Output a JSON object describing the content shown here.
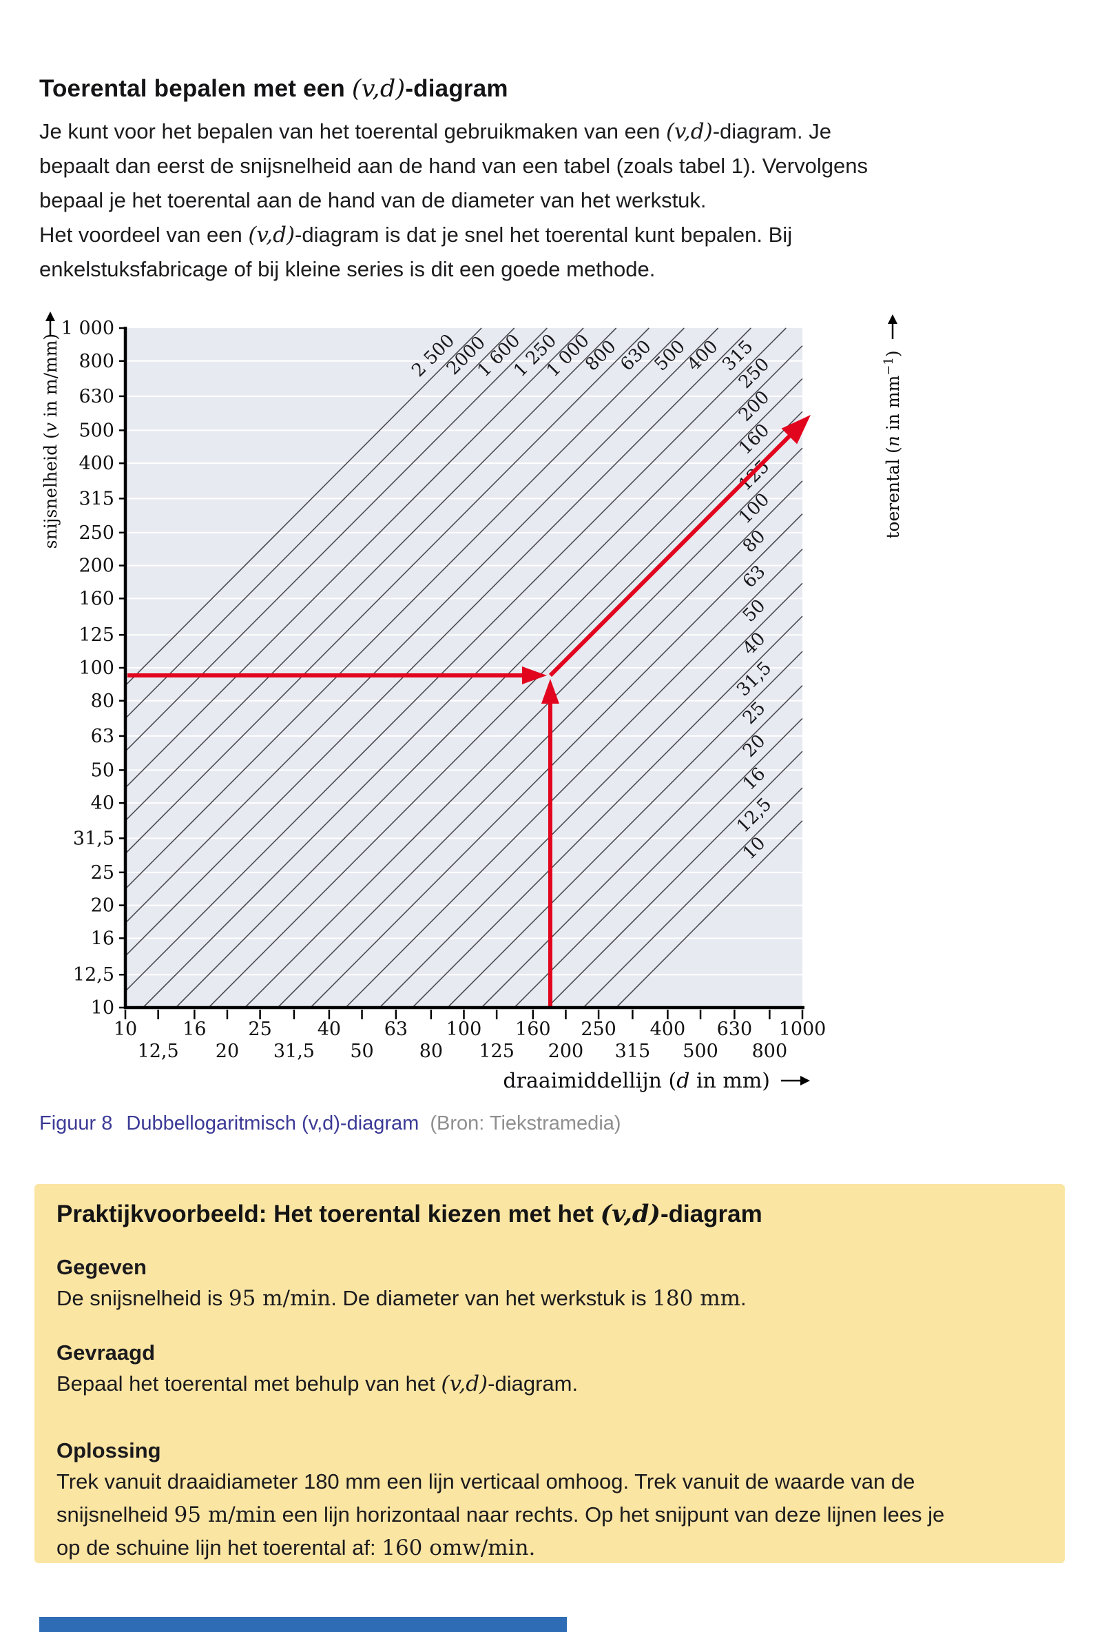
{
  "page": {
    "title": [
      {
        "t": "Toerental bepalen met een "
      },
      {
        "t": "(v,d)",
        "s": "vd"
      },
      {
        "t": "-diagram"
      }
    ],
    "intro": [
      [
        {
          "t": "Je kunt voor het bepalen van het toerental gebruikmaken van een "
        },
        {
          "t": "(v,d)",
          "s": "vd"
        },
        {
          "t": "-diagram. Je"
        }
      ],
      [
        {
          "t": "bepaalt dan eerst de snijsnelheid aan de hand van een tabel (zoals tabel 1). Vervolgens"
        }
      ],
      [
        {
          "t": "bepaal je het toerental aan de hand van de diameter van het werkstuk."
        }
      ],
      [
        {
          "t": "Het voordeel van een "
        },
        {
          "t": "(v,d)",
          "s": "vd"
        },
        {
          "t": "-diagram is dat je snel het toerental kunt bepalen. Bij"
        }
      ],
      [
        {
          "t": "enkelstuksfabricage of bij kleine series is dit een goede methode."
        }
      ]
    ]
  },
  "chart_data": {
    "type": "line",
    "description": "Double-logarithmic (v,d) nomogram: 45-degree diagonal lines of constant toerental n; red arrows show reading example d=180 mm, v=95 m/min giving n=160",
    "x_axis": {
      "title": "draaimiddellijn (d in mm)",
      "title_segs": [
        {
          "t": "draaimiddellijn ("
        },
        {
          "t": "d",
          "i": 1
        },
        {
          "t": " in mm)"
        }
      ],
      "scale": "log",
      "range": [
        10,
        1000
      ],
      "ticks": [
        "10",
        "12,5",
        "16",
        "20",
        "25",
        "31,5",
        "40",
        "50",
        "63",
        "80",
        "100",
        "125",
        "160",
        "200",
        "250",
        "315",
        "400",
        "500",
        "630",
        "800",
        "1000"
      ]
    },
    "y_axis": {
      "title": "snijsnelheid (v in m/mm)",
      "title_segs": [
        {
          "t": "snijsnelheid ("
        },
        {
          "t": "v",
          "i": 1
        },
        {
          "t": " in m/mm)"
        }
      ],
      "scale": "log",
      "range": [
        10,
        1000
      ],
      "ticks": [
        "10",
        "12,5",
        "16",
        "20",
        "25",
        "31,5",
        "40",
        "50",
        "63",
        "80",
        "100",
        "125",
        "160",
        "200",
        "250",
        "315",
        "400",
        "500",
        "630",
        "800",
        "1 000"
      ]
    },
    "diag_axis": {
      "title": "toerental (n in mm⁻¹)",
      "title_segs": [
        {
          "t": "toerental ("
        },
        {
          "t": "n",
          "i": 1
        },
        {
          "t": " in mm"
        },
        {
          "t": "−1",
          "sup": 1
        },
        {
          "t": ")"
        }
      ],
      "line_labels": [
        "2 500",
        "2000",
        "1 600",
        "1 250",
        "1 000",
        "800",
        "630",
        "500",
        "400",
        "315",
        "250",
        "200",
        "160",
        "125",
        "100",
        "80",
        "63",
        "50",
        "40",
        "31,5",
        "25",
        "20",
        "16",
        "12,5",
        "10"
      ]
    },
    "example_point": {
      "d": 180,
      "v": 95,
      "n": 160
    },
    "colors": {
      "plot_bg": "#e8eaf2",
      "grid": "#ffffff",
      "diagonal": "#4d4d52",
      "axis": "#000000",
      "red": "#e2051e"
    }
  },
  "caption": {
    "figure": "Figuur 8",
    "text": "Dubbellogaritmisch (v,d)-diagram",
    "source": "(Bron: Tiekstramedia)"
  },
  "example_box": {
    "heading": [
      {
        "t": "Praktijkvoorbeeld: Het toerental kiezen met het "
      },
      {
        "t": "(v,d)",
        "s": "vd"
      },
      {
        "t": "-diagram"
      }
    ],
    "sections": [
      {
        "label": "Gegeven",
        "lines": [
          [
            {
              "t": "De snijsnelheid is "
            },
            {
              "t": "95 m/min",
              "s": "m"
            },
            {
              "t": ". De diameter van het werkstuk is "
            },
            {
              "t": "180 mm",
              "s": "m"
            },
            {
              "t": "."
            }
          ]
        ]
      },
      {
        "label": "Gevraagd",
        "lines": [
          [
            {
              "t": "Bepaal het toerental met behulp van het "
            },
            {
              "t": "(v,d)",
              "s": "vd"
            },
            {
              "t": "-diagram."
            }
          ]
        ]
      },
      {
        "label": "Oplossing",
        "lines": [
          [
            {
              "t": "Trek vanuit draaidiameter 180 mm een lijn verticaal omhoog. Trek vanuit de waarde van de"
            }
          ],
          [
            {
              "t": "snijsnelheid "
            },
            {
              "t": "95 m/min",
              "s": "m"
            },
            {
              "t": " een lijn horizontaal naar rechts. Op het snijpunt van deze lijnen lees je"
            }
          ],
          [
            {
              "t": "op de schuine lijn het toerental af: "
            },
            {
              "t": "160 omw/min.",
              "s": "m"
            }
          ]
        ]
      }
    ]
  }
}
